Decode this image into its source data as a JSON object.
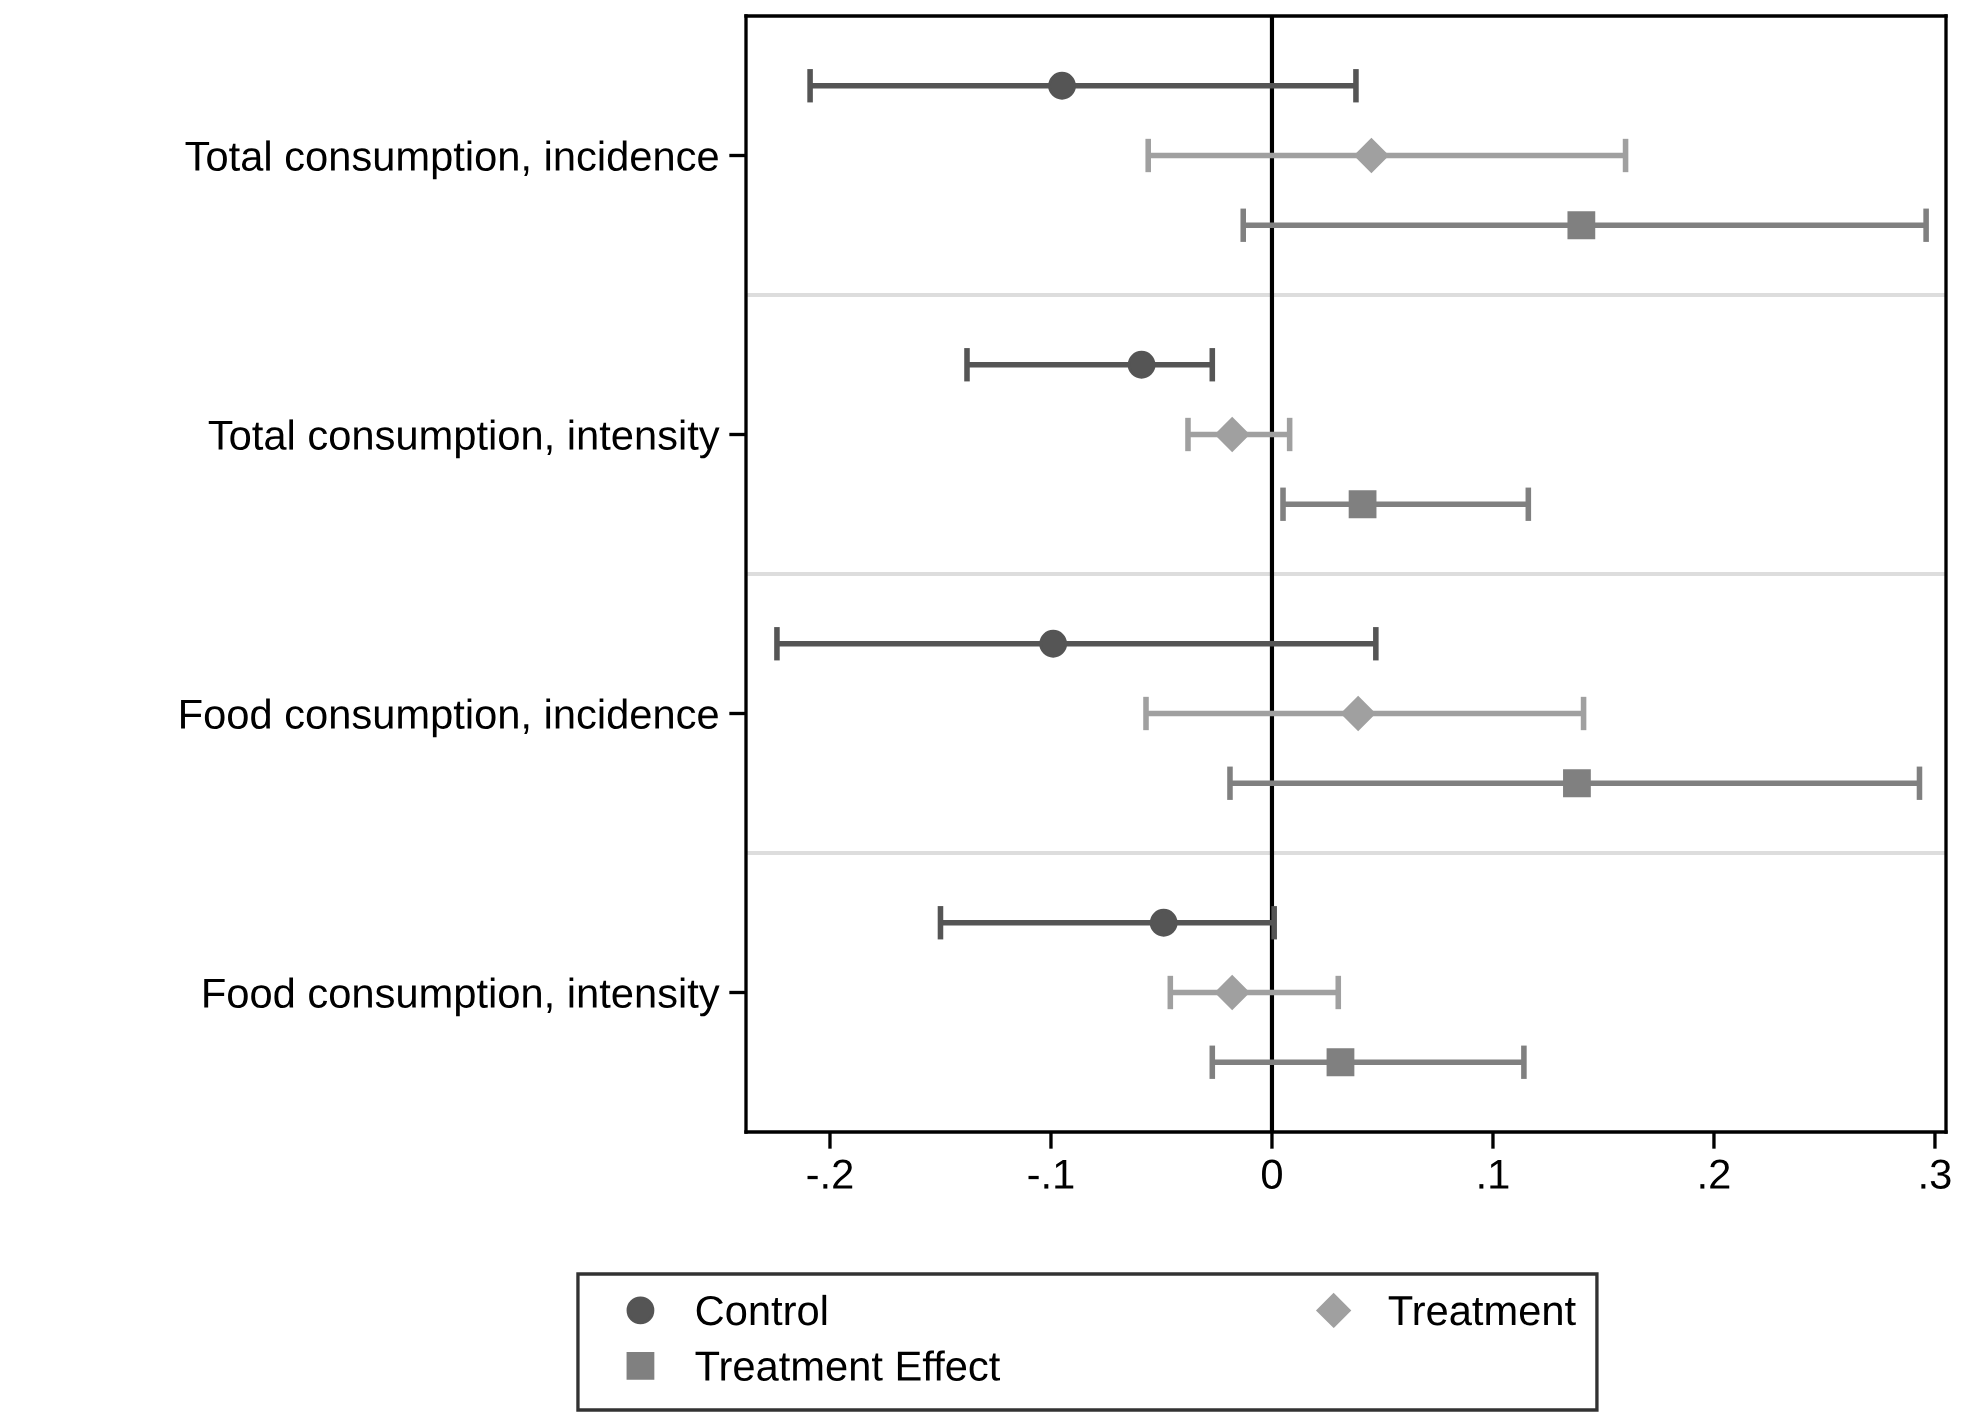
{
  "chart_data": {
    "type": "scatter",
    "orientation": "horizontal",
    "categories": [
      "Total consumption, incidence",
      "Total consumption, intensity",
      "Food consumption, incidence",
      "Food consumption, intensity"
    ],
    "series": [
      {
        "name": "Control",
        "color": "#555555",
        "marker": "circle",
        "values": [
          -0.095,
          -0.059,
          -0.099,
          -0.049
        ],
        "errors": [
          [
            -0.209,
            0.038
          ],
          [
            -0.138,
            -0.027
          ],
          [
            -0.224,
            0.047
          ],
          [
            -0.15,
            0.001
          ]
        ]
      },
      {
        "name": "Treatment",
        "color": "#a0a0a0",
        "marker": "diamond",
        "values": [
          0.045,
          -0.018,
          0.039,
          -0.018
        ],
        "errors": [
          [
            -0.056,
            0.16
          ],
          [
            -0.038,
            0.008
          ],
          [
            -0.057,
            0.141
          ],
          [
            -0.046,
            0.03
          ]
        ]
      },
      {
        "name": "Treatment Effect",
        "color": "#808080",
        "marker": "square",
        "values": [
          0.14,
          0.041,
          0.138,
          0.031
        ],
        "errors": [
          [
            -0.013,
            0.296
          ],
          [
            0.005,
            0.116
          ],
          [
            -0.019,
            0.293
          ],
          [
            -0.027,
            0.114
          ]
        ]
      }
    ],
    "xlim": [
      -0.238,
      0.305
    ],
    "xticks": [
      {
        "value": -0.2,
        "label": "-.2"
      },
      {
        "value": -0.1,
        "label": "-.1"
      },
      0,
      {
        "value": 0.1,
        "label": ".1"
      },
      {
        "value": 0.2,
        "label": ".2"
      },
      {
        "value": 0.3,
        "label": ".3"
      }
    ],
    "ref_lines": [
      {
        "axis": "x",
        "value": 0,
        "color": "#000000"
      }
    ],
    "grid": "y",
    "legend": "bottom"
  }
}
